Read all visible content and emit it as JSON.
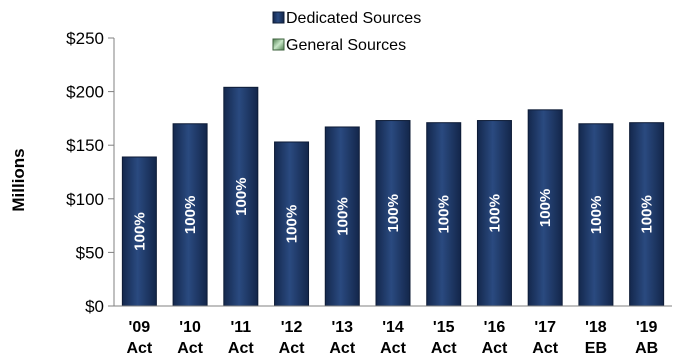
{
  "chart_data": {
    "type": "bar",
    "ylabel": "Millions",
    "ylim": [
      0,
      250
    ],
    "yticks": [
      0,
      50,
      100,
      150,
      200,
      250
    ],
    "ytick_labels": [
      "$0",
      "$50",
      "$100",
      "$150",
      "$200",
      "$250"
    ],
    "categories": [
      [
        "'09",
        "Act"
      ],
      [
        "'10",
        "Act"
      ],
      [
        "'11",
        "Act"
      ],
      [
        "'12",
        "Act"
      ],
      [
        "'13",
        "Act"
      ],
      [
        "'14",
        "Act"
      ],
      [
        "'15",
        "Act"
      ],
      [
        "'16",
        "Act"
      ],
      [
        "'17",
        "Act"
      ],
      [
        "'18",
        "EB"
      ],
      [
        "'19",
        "AB"
      ]
    ],
    "series": [
      {
        "name": "Dedicated Sources",
        "color": "#1f3864",
        "values": [
          139,
          170,
          204,
          153,
          167,
          173,
          171,
          173,
          183,
          170,
          171
        ],
        "labels": [
          "100%",
          "100%",
          "100%",
          "100%",
          "100%",
          "100%",
          "100%",
          "100%",
          "100%",
          "100%",
          "100%"
        ]
      },
      {
        "name": "General Sources",
        "color": "#8fbc8f",
        "values": [
          0,
          0,
          0,
          0,
          0,
          0,
          0,
          0,
          0,
          0,
          0
        ],
        "labels": []
      }
    ],
    "legend_position": "top-center",
    "grid": false
  }
}
